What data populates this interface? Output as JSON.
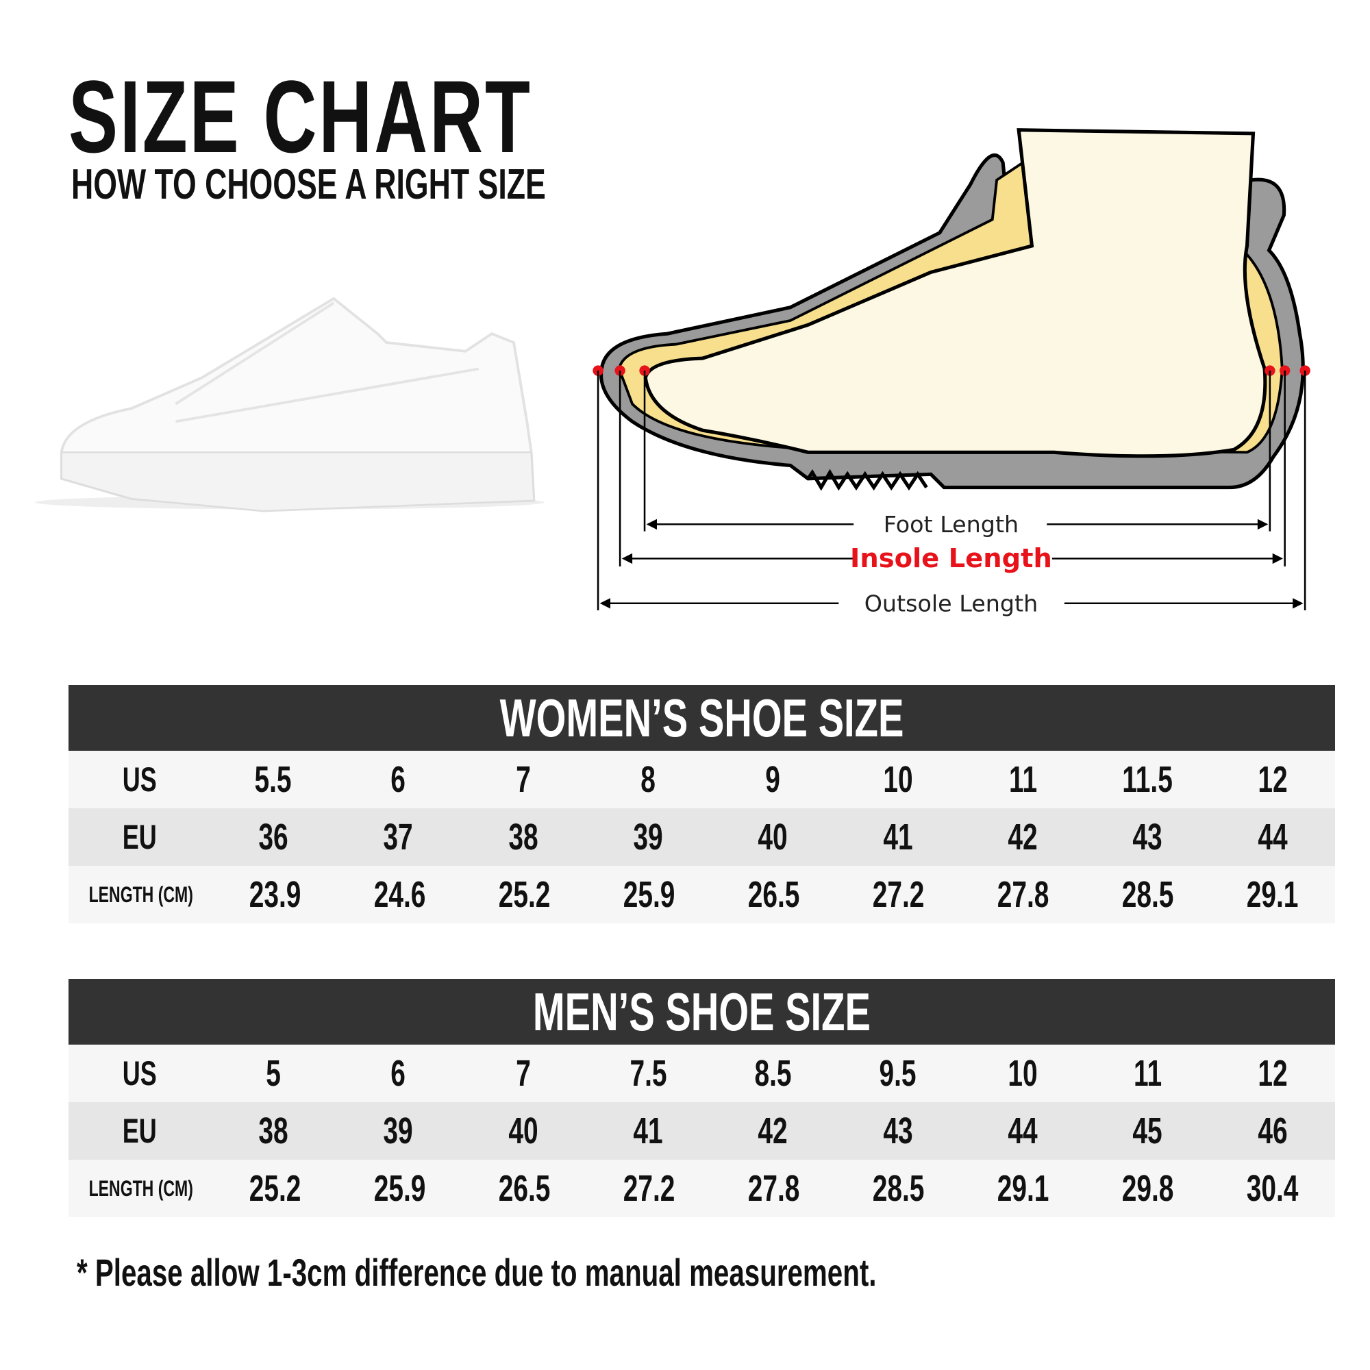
{
  "header": {
    "title": "SIZE CHART",
    "subtitle": "HOW TO CHOOSE A RIGHT SIZE"
  },
  "diagram": {
    "foot_length": "Foot Length",
    "insole_length": "Insole Length",
    "outsole_length": "Outsole Length",
    "colors": {
      "insole": "#e8121a",
      "outsole": "#999999",
      "foot": "#fdf8e4",
      "lining": "#f8df8e"
    }
  },
  "women": {
    "title": "WOMEN’S SHOE SIZE",
    "rows": [
      {
        "label": "US",
        "values": [
          "5.5",
          "6",
          "7",
          "8",
          "9",
          "10",
          "11",
          "11.5",
          "12"
        ]
      },
      {
        "label": "EU",
        "values": [
          "36",
          "37",
          "38",
          "39",
          "40",
          "41",
          "42",
          "43",
          "44"
        ]
      },
      {
        "label": "LENGTH (CM)",
        "values": [
          "23.9",
          "24.6",
          "25.2",
          "25.9",
          "26.5",
          "27.2",
          "27.8",
          "28.5",
          "29.1"
        ]
      }
    ]
  },
  "men": {
    "title": "MEN’S SHOE SIZE",
    "rows": [
      {
        "label": "US",
        "values": [
          "5",
          "6",
          "7",
          "7.5",
          "8.5",
          "9.5",
          "10",
          "11",
          "12"
        ]
      },
      {
        "label": "EU",
        "values": [
          "38",
          "39",
          "40",
          "41",
          "42",
          "43",
          "44",
          "45",
          "46"
        ]
      },
      {
        "label": "LENGTH (CM)",
        "values": [
          "25.2",
          "25.9",
          "26.5",
          "27.2",
          "27.8",
          "28.5",
          "29.1",
          "29.8",
          "30.4"
        ]
      }
    ]
  },
  "note": "* Please allow 1-3cm difference due to manual measurement."
}
